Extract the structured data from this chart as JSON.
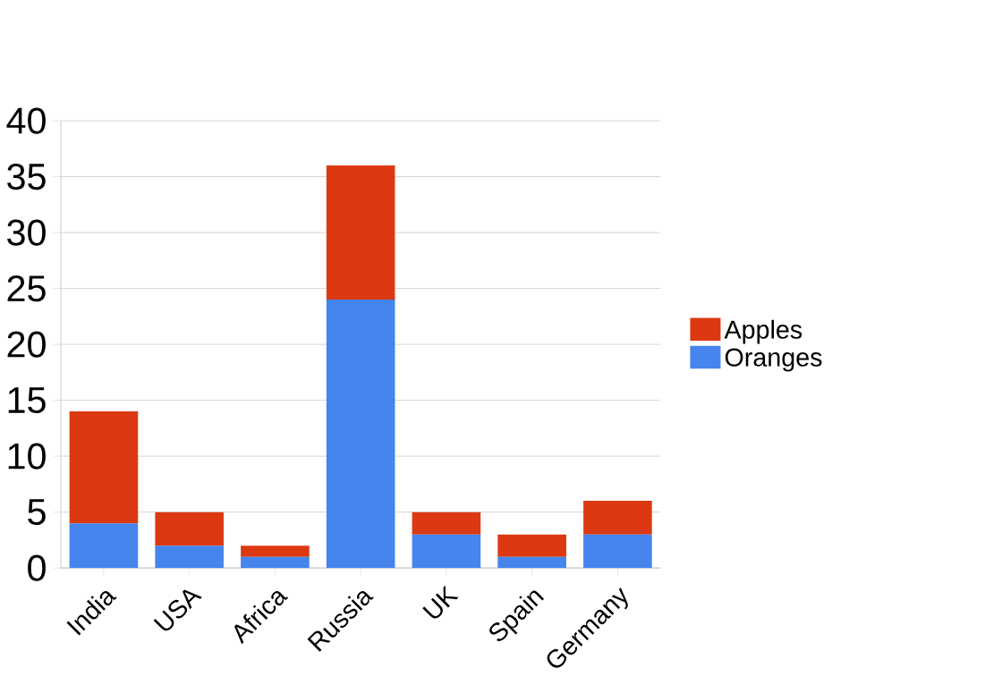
{
  "chart_data": {
    "type": "bar",
    "stacked": true,
    "categories": [
      "India",
      "USA",
      "Africa",
      "Russia",
      "UK",
      "Spain",
      "Germany"
    ],
    "series": [
      {
        "name": "Oranges",
        "color": "#4684ee",
        "values": [
          4,
          2,
          1,
          24,
          3,
          1,
          3
        ]
      },
      {
        "name": "Apples",
        "color": "#dc3912",
        "values": [
          10,
          3,
          1,
          12,
          2,
          2,
          3
        ]
      }
    ],
    "ylim": [
      0,
      40
    ],
    "yticks": [
      0,
      5,
      10,
      15,
      20,
      25,
      30,
      35,
      40
    ],
    "grid": "y",
    "legend": "right"
  }
}
